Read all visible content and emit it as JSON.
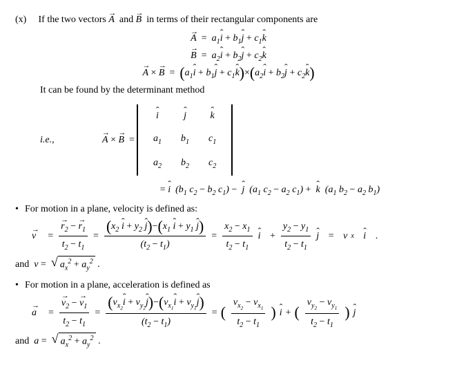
{
  "item_label": "(x)",
  "intro": "If the two vectors",
  "and_word": "and",
  "intro_tail": "in terms of their rectangular components are",
  "A": "A",
  "B": "B",
  "i": "i",
  "j": "j",
  "k": "k",
  "ie": "i.e.,",
  "a1": "a",
  "a2": "a",
  "b1": "b",
  "b2": "b",
  "c1": "c",
  "c2": "c",
  "one": "1",
  "two": "2",
  "det_intro": "It can be found by the determinant method",
  "eq": "=",
  "minus": "−",
  "plus": "+",
  "times": "×",
  "cross_exp_1": "(b",
  "cross_exp_2": "c",
  "cross_exp_3": ")",
  "bullet_vel": "For motion in a plane, velocity is defined as:",
  "bullet_acc": "For motion in a plane, acceleration is defined as",
  "v": "v",
  "a": "a",
  "r": "r",
  "t": "t",
  "x": "x",
  "y": "y",
  "and_text": "and",
  "dot": ".",
  "bullet_sym": "•"
}
